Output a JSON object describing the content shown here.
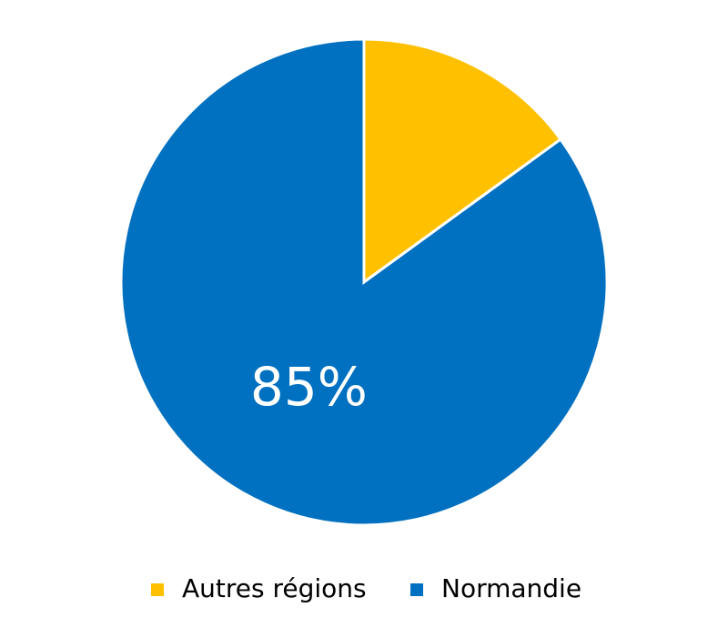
{
  "chart_data": {
    "type": "pie",
    "categories": [
      "Autres régions",
      "Normandie"
    ],
    "values": [
      15,
      85
    ],
    "value_labels": [
      null,
      "85%"
    ],
    "colors": [
      "#ffc000",
      "#0070c0"
    ],
    "legend": "bottom"
  }
}
